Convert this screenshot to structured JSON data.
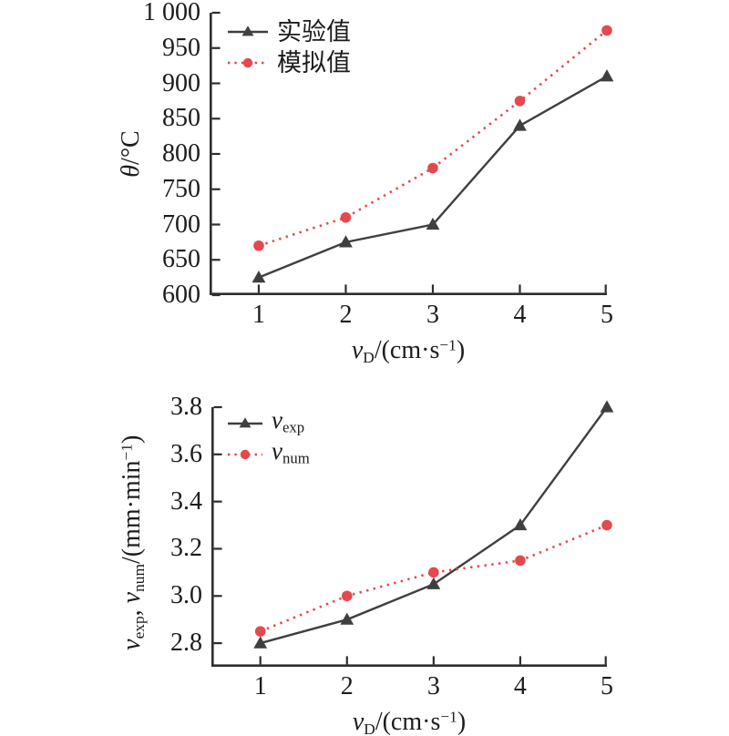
{
  "figure": {
    "background": "#ffffff",
    "axis_color": "#2e2e30",
    "text_color": "#1c1c1e"
  },
  "chart_data": [
    {
      "id": "temperature-chart",
      "type": "line",
      "x": [
        1,
        2,
        3,
        4,
        5
      ],
      "xlim": [
        0.435,
        5.0
      ],
      "ylim": [
        600,
        1000
      ],
      "xticks": [
        1,
        2,
        3,
        4,
        5
      ],
      "xtick_labels": [
        "1",
        "2",
        "3",
        "4",
        "5"
      ],
      "yticks": [
        600,
        650,
        700,
        750,
        800,
        850,
        900,
        950,
        1000
      ],
      "ytick_labels": [
        "600",
        "650",
        "700",
        "750",
        "800",
        "850",
        "900",
        "950",
        "1 000"
      ],
      "xlabel": "vD/(cm·s−1)",
      "xlabel_rich": [
        [
          "v",
          "i"
        ],
        [
          "D",
          "sub"
        ],
        [
          "/(cm·s",
          "n"
        ],
        [
          "−1",
          "sup"
        ],
        [
          ")",
          "n"
        ]
      ],
      "ylabel": "θ/°C",
      "ylabel_rich": [
        [
          "θ",
          "i"
        ],
        [
          "/°C",
          "n"
        ]
      ],
      "grid": false,
      "legend_position": "top-left-inside",
      "series": [
        {
          "name": "实验值",
          "name_rich": [
            [
              "实验值",
              "n"
            ]
          ],
          "values": [
            625,
            675,
            700,
            840,
            910
          ],
          "color": "#3f3f41",
          "marker": "triangle",
          "line_style": "solid"
        },
        {
          "name": "模拟值",
          "name_rich": [
            [
              "模拟值",
              "n"
            ]
          ],
          "values": [
            670,
            710,
            780,
            875,
            975
          ],
          "color": "#e5484d",
          "marker": "circle",
          "line_style": "dotted"
        }
      ]
    },
    {
      "id": "cutting-speed-chart",
      "type": "line",
      "x": [
        1,
        2,
        3,
        4,
        5
      ],
      "xlim": [
        0.435,
        5.0
      ],
      "ylim": [
        2.7,
        3.8
      ],
      "xticks": [
        1,
        2,
        3,
        4,
        5
      ],
      "xtick_labels": [
        "1",
        "2",
        "3",
        "4",
        "5"
      ],
      "yticks": [
        2.8,
        3.0,
        3.2,
        3.4,
        3.6,
        3.8
      ],
      "ytick_labels": [
        "2.8",
        "3.0",
        "3.2",
        "3.4",
        "3.6",
        "3.8"
      ],
      "xlabel": "vD/(cm·s−1)",
      "xlabel_rich": [
        [
          "v",
          "i"
        ],
        [
          "D",
          "sub"
        ],
        [
          "/(cm·s",
          "n"
        ],
        [
          "−1",
          "sup"
        ],
        [
          ")",
          "n"
        ]
      ],
      "ylabel": "vexp, vnum/(mm·min−1)",
      "ylabel_rich": [
        [
          "v",
          "i"
        ],
        [
          "exp",
          "sub"
        ],
        [
          ", ",
          "n"
        ],
        [
          "v",
          "i"
        ],
        [
          "num",
          "sub"
        ],
        [
          "/(mm·min",
          "n"
        ],
        [
          "−1",
          "sup"
        ],
        [
          ")",
          "n"
        ]
      ],
      "grid": false,
      "legend_position": "top-left-inside",
      "series": [
        {
          "name": "vexp",
          "name_rich": [
            [
              "v",
              "i"
            ],
            [
              "exp",
              "sub"
            ]
          ],
          "values": [
            2.8,
            2.9,
            3.05,
            3.3,
            3.8
          ],
          "color": "#3f3f41",
          "marker": "triangle",
          "line_style": "solid"
        },
        {
          "name": "vnum",
          "name_rich": [
            [
              "v",
              "i"
            ],
            [
              "num",
              "sub"
            ]
          ],
          "values": [
            2.85,
            3.0,
            3.1,
            3.15,
            3.3
          ],
          "color": "#e5484d",
          "marker": "circle",
          "line_style": "dotted"
        }
      ]
    }
  ]
}
